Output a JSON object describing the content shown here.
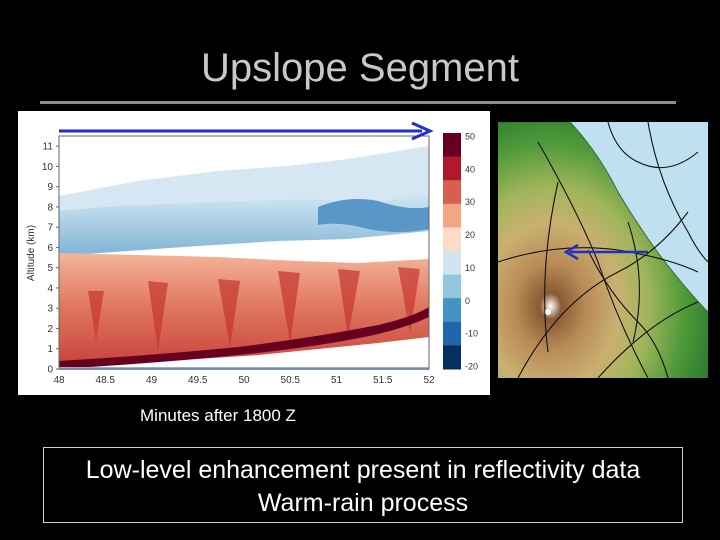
{
  "slide": {
    "title": "Upslope Segment",
    "x_axis_caption": "Minutes after 1800 Z",
    "summary_lines": [
      "Low-level enhancement present in reflectivity data",
      "Warm-rain process"
    ]
  },
  "reflectivity_plot": {
    "ylabel": "Altitude (km)",
    "x_ticks": [
      "48",
      "48.5",
      "49",
      "49.5",
      "50",
      "50.5",
      "51",
      "51.5",
      "52"
    ],
    "y_ticks": [
      "0",
      "1",
      "2",
      "3",
      "4",
      "5",
      "6",
      "7",
      "8",
      "9",
      "10",
      "11"
    ],
    "colorbar_ticks": [
      "50",
      "40",
      "30",
      "20",
      "10",
      "0",
      "-10",
      "-20"
    ],
    "colorbar_colors": [
      "#67001f",
      "#b2182b",
      "#d6604d",
      "#f4a582",
      "#fddbc7",
      "#d1e5f0",
      "#92c5de",
      "#4393c3",
      "#2166ac",
      "#053061"
    ],
    "arrow_color": "#1f2fc8"
  },
  "terrain_map": {
    "ocean_color": "#bfe0ee",
    "arrow_color": "#1f2fc8"
  }
}
